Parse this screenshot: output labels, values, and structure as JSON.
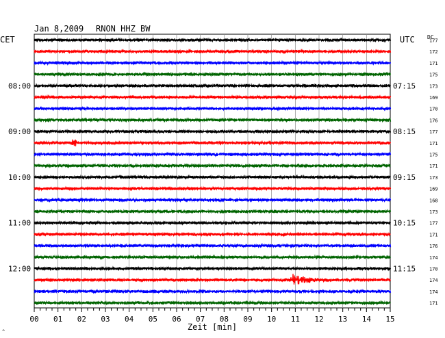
{
  "header": {
    "date": "Jan 8,2009",
    "station": "RNON HHZ BW",
    "left_zone": "CET",
    "right_zone": "UTC",
    "dc_label": "DC"
  },
  "chart_data": {
    "type": "line",
    "title": "Jan 8,2009   RNON HHZ BW",
    "xlabel": "Zeit [min]",
    "ylabel": "",
    "xlim": [
      0,
      15
    ],
    "x_tick_labels": [
      "00",
      "01",
      "02",
      "03",
      "04",
      "05",
      "06",
      "07",
      "08",
      "09",
      "10",
      "11",
      "12",
      "13",
      "14",
      "15"
    ],
    "minor_ticks_per_minute": 4,
    "grid": true,
    "trace_colors": [
      "#000000",
      "#ff0000",
      "#0000ff",
      "#006400"
    ],
    "hour_labels_cet": [
      "08:00",
      "09:00",
      "10:00",
      "11:00",
      "12:00"
    ],
    "hour_labels_utc": [
      "07:15",
      "08:15",
      "09:15",
      "10:15",
      "11:15"
    ],
    "traces": [
      {
        "dc": "177",
        "event": null
      },
      {
        "dc": "172",
        "event": null
      },
      {
        "dc": "171",
        "event": null
      },
      {
        "dc": "175",
        "event": null
      },
      {
        "dc": "173",
        "event": null
      },
      {
        "dc": "169",
        "event": null
      },
      {
        "dc": "170",
        "event": null
      },
      {
        "dc": "176",
        "event": null
      },
      {
        "dc": "177",
        "event": null
      },
      {
        "dc": "171",
        "event": {
          "minute": 1.65,
          "amplitude": "small"
        }
      },
      {
        "dc": "175",
        "event": null
      },
      {
        "dc": "171",
        "event": null
      },
      {
        "dc": "173",
        "event": null
      },
      {
        "dc": "169",
        "event": null
      },
      {
        "dc": "168",
        "event": null
      },
      {
        "dc": "173",
        "event": null
      },
      {
        "dc": "177",
        "event": null
      },
      {
        "dc": "171",
        "event": null
      },
      {
        "dc": "176",
        "event": null
      },
      {
        "dc": "174",
        "event": null
      },
      {
        "dc": "170",
        "event": null
      },
      {
        "dc": "174",
        "event": {
          "minute": 10.9,
          "amplitude": "large"
        }
      },
      {
        "dc": "174",
        "event": null
      },
      {
        "dc": "171",
        "event": null
      }
    ],
    "hour_label_trace_indices": [
      4,
      8,
      12,
      16,
      20
    ]
  }
}
